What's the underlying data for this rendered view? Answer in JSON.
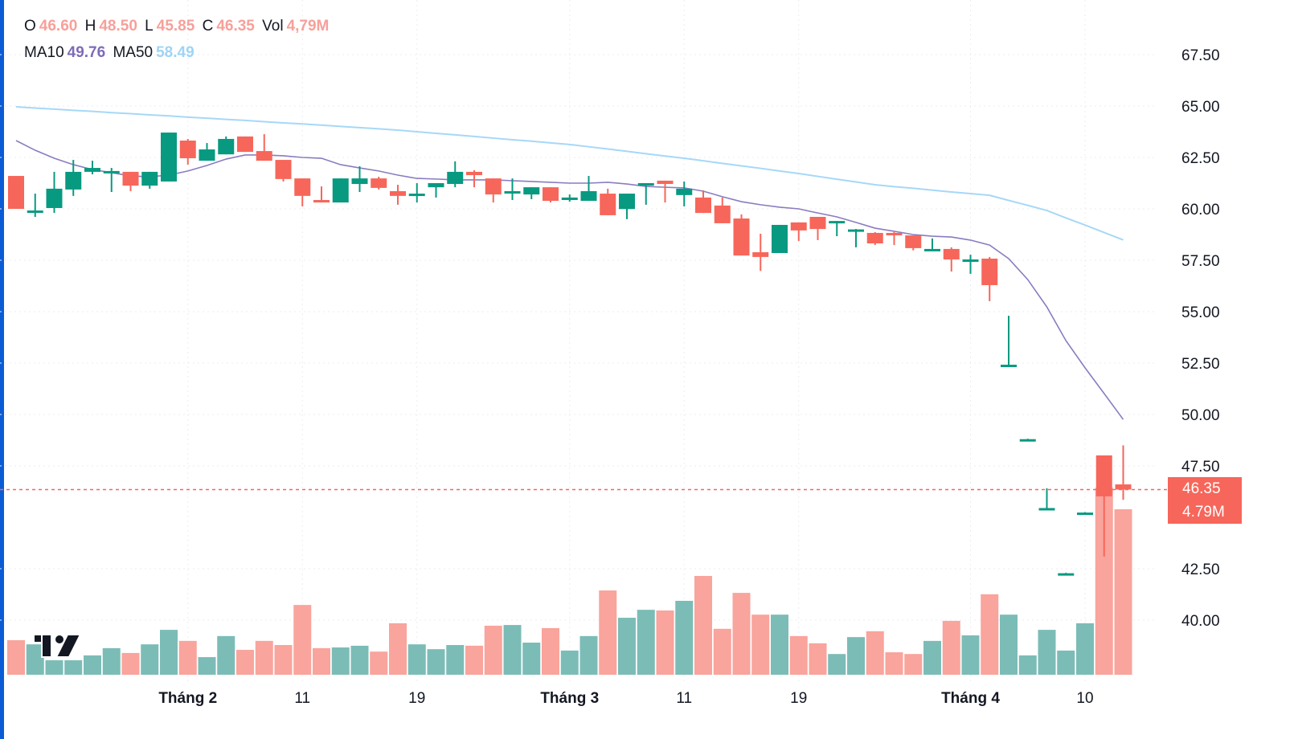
{
  "legend": {
    "o_label": "O",
    "o": "46.60",
    "h_label": "H",
    "h": "48.50",
    "l_label": "L",
    "l": "45.85",
    "c_label": "C",
    "c": "46.35",
    "vol_label": "Vol",
    "vol": "4,79M",
    "ma10_label": "MA10",
    "ma10": "49.76",
    "ma50_label": "MA50",
    "ma50": "58.49"
  },
  "price_tag": "46.35",
  "volume_tag": "4.79M",
  "colors": {
    "up": "#089981",
    "down": "#f7665a",
    "up_vol": "#7cbcb7",
    "down_vol": "#f9a49c",
    "ma10": "#8a7cc0",
    "ma50": "#a6d8f7",
    "accent": "#0a5cd6"
  },
  "logo": "TV",
  "chart_data": {
    "type": "candlestick",
    "title": "",
    "y_ticks": [
      "67.50",
      "65.00",
      "62.50",
      "60.00",
      "57.50",
      "55.00",
      "52.50",
      "50.00",
      "47.50",
      "42.50",
      "40.00"
    ],
    "y_tick_values": [
      67.5,
      65,
      62.5,
      60,
      57.5,
      55,
      52.5,
      50,
      47.5,
      42.5,
      40
    ],
    "ylim": [
      37.2,
      69.0
    ],
    "x_ticks": [
      {
        "label": "Tháng 2",
        "index": 9,
        "bold": true
      },
      {
        "label": "11",
        "index": 15,
        "bold": false
      },
      {
        "label": "19",
        "index": 21,
        "bold": false
      },
      {
        "label": "Tháng 3",
        "index": 29,
        "bold": true
      },
      {
        "label": "11",
        "index": 35,
        "bold": false
      },
      {
        "label": "19",
        "index": 41,
        "bold": false
      },
      {
        "label": "Tháng 4",
        "index": 50,
        "bold": true
      },
      {
        "label": "10",
        "index": 56,
        "bold": false
      }
    ],
    "ohlc": [
      [
        61.6,
        61.6,
        60.0,
        60.0
      ],
      [
        59.88,
        60.74,
        59.61,
        59.92
      ],
      [
        60.04,
        61.8,
        59.8,
        60.98
      ],
      [
        60.94,
        62.38,
        60.63,
        61.8
      ],
      [
        61.8,
        62.34,
        61.68,
        61.99
      ],
      [
        61.8,
        61.99,
        60.82,
        61.84
      ],
      [
        61.8,
        61.8,
        60.86,
        61.13
      ],
      [
        61.13,
        61.8,
        60.98,
        61.8
      ],
      [
        61.33,
        63.71,
        61.33,
        63.71
      ],
      [
        63.32,
        63.4,
        62.15,
        62.46
      ],
      [
        62.34,
        63.2,
        62.34,
        62.89
      ],
      [
        62.65,
        63.52,
        62.65,
        63.4
      ],
      [
        63.52,
        63.52,
        62.77,
        62.77
      ],
      [
        62.81,
        63.63,
        62.34,
        62.34
      ],
      [
        62.38,
        62.38,
        61.33,
        61.45
      ],
      [
        61.48,
        61.48,
        60.12,
        60.63
      ],
      [
        60.43,
        61.09,
        60.31,
        60.31
      ],
      [
        60.31,
        61.48,
        60.31,
        61.48
      ],
      [
        61.21,
        62.07,
        60.82,
        61.48
      ],
      [
        61.48,
        61.56,
        60.94,
        61.02
      ],
      [
        60.86,
        61.17,
        60.2,
        60.63
      ],
      [
        60.7,
        61.25,
        60.31,
        60.74
      ],
      [
        61.05,
        61.25,
        60.55,
        61.25
      ],
      [
        61.21,
        62.31,
        61.05,
        61.8
      ],
      [
        61.8,
        61.88,
        61.05,
        61.64
      ],
      [
        61.48,
        61.48,
        60.31,
        60.7
      ],
      [
        60.78,
        61.48,
        60.43,
        60.86
      ],
      [
        60.7,
        61.05,
        60.47,
        61.05
      ],
      [
        61.05,
        61.05,
        60.31,
        60.39
      ],
      [
        60.43,
        60.7,
        60.35,
        60.55
      ],
      [
        60.39,
        61.6,
        60.39,
        60.86
      ],
      [
        60.74,
        60.98,
        59.69,
        59.69
      ],
      [
        59.99,
        60.74,
        59.5,
        60.74
      ],
      [
        61.13,
        61.25,
        60.2,
        61.25
      ],
      [
        61.37,
        61.37,
        60.31,
        61.21
      ],
      [
        60.67,
        61.33,
        60.12,
        60.98
      ],
      [
        60.55,
        60.9,
        59.8,
        59.8
      ],
      [
        60.16,
        60.55,
        59.3,
        59.3
      ],
      [
        59.53,
        59.73,
        57.73,
        57.73
      ],
      [
        57.89,
        58.79,
        56.98,
        57.66
      ],
      [
        57.85,
        59.22,
        57.85,
        59.22
      ],
      [
        59.34,
        59.34,
        58.44,
        58.95
      ],
      [
        59.61,
        59.61,
        58.48,
        59.02
      ],
      [
        59.34,
        59.41,
        58.67,
        59.41
      ],
      [
        58.95,
        59.02,
        58.13,
        59.0
      ],
      [
        58.83,
        58.87,
        58.24,
        58.32
      ],
      [
        58.83,
        58.87,
        58.24,
        58.75
      ],
      [
        58.71,
        58.71,
        57.98,
        58.09
      ],
      [
        58.0,
        58.56,
        58.0,
        58.05
      ],
      [
        58.05,
        58.13,
        56.95,
        57.54
      ],
      [
        57.46,
        57.77,
        56.84,
        57.54
      ],
      [
        57.58,
        57.66,
        55.51,
        56.29
      ],
      [
        52.38,
        54.8,
        52.34,
        52.42
      ],
      [
        48.75,
        48.82,
        48.73,
        48.8
      ],
      [
        45.39,
        46.41,
        45.35,
        45.45
      ],
      [
        42.23,
        42.3,
        42.2,
        42.28
      ],
      [
        45.19,
        45.25,
        45.17,
        45.23
      ],
      [
        48.01,
        48.01,
        43.09,
        46.02
      ],
      [
        46.6,
        48.5,
        45.85,
        46.35
      ]
    ],
    "volume_millions": [
      1.0,
      0.88,
      0.42,
      0.42,
      0.56,
      0.77,
      0.63,
      0.88,
      1.3,
      0.98,
      0.51,
      1.12,
      0.72,
      0.98,
      0.86,
      2.02,
      0.77,
      0.79,
      0.84,
      0.67,
      1.49,
      0.88,
      0.74,
      0.86,
      0.84,
      1.42,
      1.44,
      0.93,
      1.35,
      0.7,
      1.12,
      2.44,
      1.65,
      1.88,
      1.86,
      2.14,
      2.86,
      1.33,
      2.37,
      1.74,
      1.74,
      1.12,
      0.91,
      0.6,
      1.09,
      1.26,
      0.65,
      0.6,
      0.98,
      1.56,
      1.14,
      2.33,
      1.74,
      0.56,
      1.3,
      0.7,
      1.49,
      5.42,
      4.79
    ],
    "ma10": [
      63.32,
      62.85,
      62.46,
      62.15,
      61.91,
      61.76,
      61.6,
      61.56,
      61.64,
      61.84,
      62.11,
      62.42,
      62.62,
      62.62,
      62.58,
      62.5,
      62.46,
      62.15,
      61.99,
      61.84,
      61.64,
      61.48,
      61.45,
      61.41,
      61.41,
      61.41,
      61.37,
      61.33,
      61.29,
      61.25,
      61.25,
      61.29,
      61.21,
      61.09,
      61.05,
      61.02,
      60.86,
      60.59,
      60.35,
      60.2,
      60.08,
      60.0,
      59.8,
      59.61,
      59.34,
      59.06,
      58.91,
      58.75,
      58.67,
      58.63,
      58.48,
      58.24,
      57.58,
      56.56,
      55.23,
      53.59,
      52.27,
      51.02,
      49.76
    ],
    "ma50": [
      64.96,
      64.9,
      64.85,
      64.79,
      64.74,
      64.68,
      64.63,
      64.57,
      64.52,
      64.46,
      64.41,
      64.35,
      64.3,
      64.24,
      64.18,
      64.13,
      64.07,
      64.01,
      63.95,
      63.89,
      63.83,
      63.75,
      63.67,
      63.6,
      63.52,
      63.44,
      63.36,
      63.29,
      63.21,
      63.13,
      63.02,
      62.91,
      62.8,
      62.68,
      62.57,
      62.46,
      62.34,
      62.21,
      62.09,
      61.97,
      61.84,
      61.72,
      61.58,
      61.44,
      61.31,
      61.17,
      61.08,
      61.0,
      60.91,
      60.82,
      60.74,
      60.66,
      60.41,
      60.17,
      59.92,
      59.56,
      59.21,
      58.85,
      58.49
    ],
    "last_price": 46.35,
    "last_volume_millions": 4.79,
    "grid": true
  }
}
